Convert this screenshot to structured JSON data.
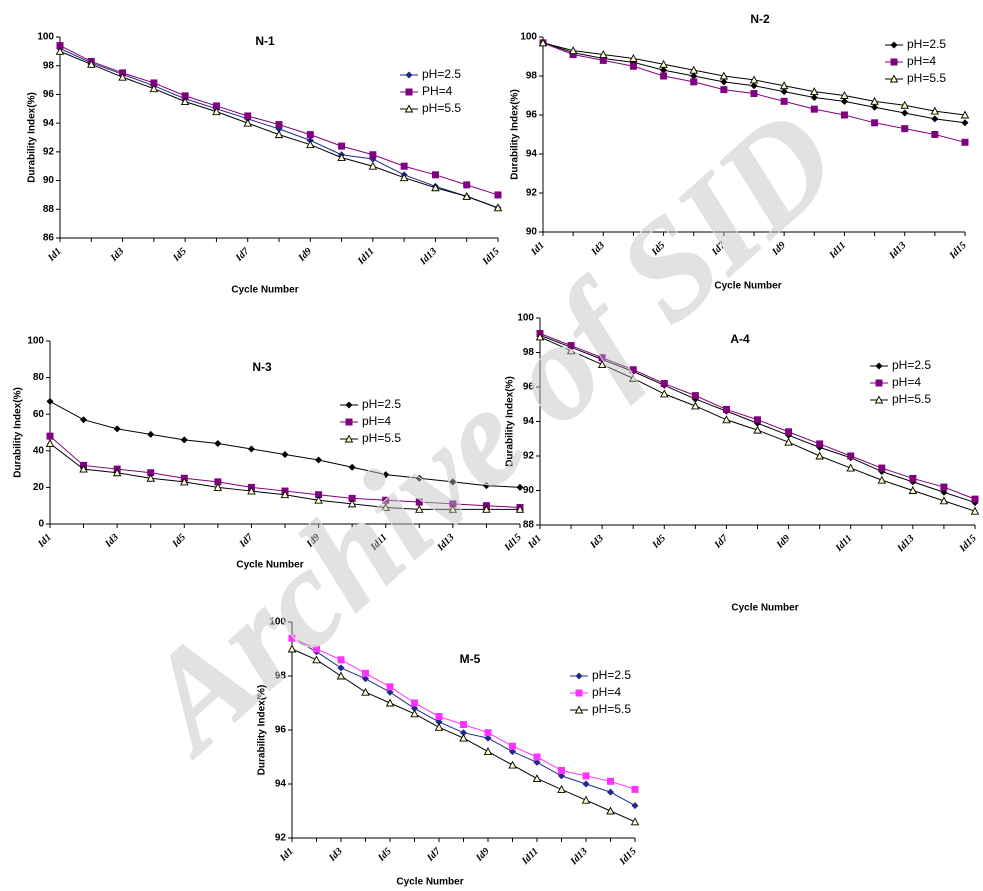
{
  "watermark": "Archive of SID",
  "chart_data": [
    {
      "type": "line",
      "title": "N-1",
      "x_label": "Cycle Number",
      "y_label": "Durability Index(%)",
      "categories": [
        "Id1",
        null,
        "Id3",
        null,
        "Id5",
        null,
        "Id7",
        null,
        "Id9",
        null,
        "Id11",
        null,
        "Id13",
        null,
        "Id15"
      ],
      "ylim": [
        86,
        100
      ],
      "yticks": [
        86,
        88,
        90,
        92,
        94,
        96,
        98,
        100
      ],
      "series": [
        {
          "name": "pH=2.5",
          "color": "#1f2a8a",
          "marker": "diamond",
          "values": [
            99.2,
            98.2,
            97.4,
            96.6,
            95.7,
            95.0,
            94.3,
            93.6,
            92.8,
            91.8,
            91.5,
            90.4,
            89.6,
            88.9,
            88.1
          ]
        },
        {
          "name": "PH=4",
          "color": "#800080",
          "marker": "square",
          "values": [
            99.4,
            98.3,
            97.5,
            96.8,
            95.9,
            95.2,
            94.5,
            93.9,
            93.2,
            92.4,
            91.8,
            91.0,
            90.4,
            89.7,
            89.0
          ]
        },
        {
          "name": "pH=5.5",
          "color": "#000000",
          "marker": "triangle",
          "values": [
            99.0,
            98.1,
            97.2,
            96.4,
            95.5,
            94.8,
            94.0,
            93.2,
            92.5,
            91.6,
            91.0,
            90.2,
            89.5,
            88.9,
            88.1
          ]
        }
      ]
    },
    {
      "type": "line",
      "title": "N-2",
      "x_label": "Cycle Number",
      "y_label": "Durability Index(%)",
      "categories": [
        "Id1",
        null,
        "Id3",
        null,
        "Id5",
        null,
        "Id7",
        null,
        "Id9",
        null,
        "Id11",
        null,
        "Id13",
        null,
        "Id15"
      ],
      "ylim": [
        90,
        100
      ],
      "yticks": [
        90,
        92,
        94,
        96,
        98,
        100
      ],
      "series": [
        {
          "name": "pH=2.5",
          "color": "#000000",
          "marker": "diamond",
          "values": [
            99.7,
            99.2,
            98.9,
            98.7,
            98.3,
            98.0,
            97.7,
            97.5,
            97.2,
            96.9,
            96.7,
            96.4,
            96.1,
            95.8,
            95.6
          ]
        },
        {
          "name": "pH=4",
          "color": "#800080",
          "marker": "square",
          "values": [
            99.7,
            99.1,
            98.8,
            98.5,
            98.0,
            97.7,
            97.3,
            97.1,
            96.7,
            96.3,
            96.0,
            95.6,
            95.3,
            95.0,
            94.6
          ]
        },
        {
          "name": "pH=5.5",
          "color": "#000000",
          "marker": "triangle",
          "values": [
            99.7,
            99.3,
            99.1,
            98.9,
            98.6,
            98.3,
            98.0,
            97.8,
            97.5,
            97.2,
            97.0,
            96.7,
            96.5,
            96.2,
            96.0
          ]
        }
      ]
    },
    {
      "type": "line",
      "title": "N-3",
      "x_label": "Cycle Number",
      "y_label": "Durability Index(%)",
      "categories": [
        "Id1",
        null,
        "Id3",
        null,
        "Id5",
        null,
        "Id7",
        null,
        "Id9",
        null,
        "Id11",
        null,
        "Id13",
        null,
        "Id15"
      ],
      "ylim": [
        0,
        100
      ],
      "yticks": [
        0,
        20,
        40,
        60,
        80,
        100
      ],
      "series": [
        {
          "name": "pH=2.5",
          "color": "#000000",
          "marker": "diamond",
          "values": [
            67,
            57,
            52,
            49,
            46,
            44,
            41,
            38,
            35,
            31,
            27,
            25,
            23,
            21,
            20
          ]
        },
        {
          "name": "pH=4",
          "color": "#800080",
          "marker": "square",
          "values": [
            48,
            32,
            30,
            28,
            25,
            23,
            20,
            18,
            16,
            14,
            13,
            12,
            11,
            10,
            9
          ]
        },
        {
          "name": "pH=5.5",
          "color": "#000000",
          "marker": "triangle",
          "values": [
            44,
            30,
            28,
            25,
            23,
            20,
            18,
            16,
            13,
            11,
            9,
            8,
            8,
            8,
            8
          ]
        }
      ]
    },
    {
      "type": "line",
      "title": "A-4",
      "x_label": "Cycle Number",
      "y_label": "Durability Index(%)",
      "categories": [
        "Id1",
        null,
        "Id3",
        null,
        "Id5",
        null,
        "Id7",
        null,
        "Id9",
        null,
        "Id11",
        null,
        "Id13",
        null,
        "Id15"
      ],
      "ylim": [
        88,
        100
      ],
      "yticks": [
        88,
        90,
        92,
        94,
        96,
        98,
        100
      ],
      "series": [
        {
          "name": "pH=2.5",
          "color": "#000000",
          "marker": "diamond",
          "values": [
            99.0,
            98.3,
            97.6,
            96.9,
            96.1,
            95.3,
            94.6,
            93.9,
            93.2,
            92.5,
            91.9,
            91.1,
            90.5,
            89.9,
            89.3
          ]
        },
        {
          "name": "pH=4",
          "color": "#800080",
          "marker": "square",
          "values": [
            99.1,
            98.4,
            97.7,
            97.0,
            96.2,
            95.5,
            94.7,
            94.1,
            93.4,
            92.7,
            92.0,
            91.3,
            90.7,
            90.2,
            89.5
          ]
        },
        {
          "name": "pH=5.5",
          "color": "#000000",
          "marker": "triangle",
          "values": [
            98.9,
            98.1,
            97.3,
            96.5,
            95.6,
            94.9,
            94.1,
            93.5,
            92.8,
            92.0,
            91.3,
            90.6,
            90.0,
            89.4,
            88.8
          ]
        }
      ]
    },
    {
      "type": "line",
      "title": "M-5",
      "x_label": "Cycle Number",
      "y_label": "Durability Index(%)",
      "categories": [
        "Id1",
        null,
        "Id3",
        null,
        "Id5",
        null,
        "Id7",
        null,
        "Id9",
        null,
        "Id11",
        null,
        "Id13",
        null,
        "Id15"
      ],
      "ylim": [
        92,
        100
      ],
      "yticks": [
        92,
        94,
        96,
        98,
        100
      ],
      "series": [
        {
          "name": "pH=2.5",
          "color": "#1f2a8a",
          "marker": "diamond",
          "values": [
            99.4,
            98.9,
            98.3,
            97.9,
            97.4,
            96.8,
            96.3,
            95.9,
            95.7,
            95.2,
            94.8,
            94.3,
            94.0,
            93.7,
            93.2
          ]
        },
        {
          "name": "pH=4",
          "color": "#ff33ff",
          "marker": "square",
          "values": [
            99.4,
            99.0,
            98.6,
            98.1,
            97.6,
            97.0,
            96.5,
            96.2,
            95.9,
            95.4,
            95.0,
            94.5,
            94.3,
            94.1,
            93.8
          ]
        },
        {
          "name": "pH=5.5",
          "color": "#000000",
          "marker": "triangle",
          "values": [
            99.0,
            98.6,
            98.0,
            97.4,
            97.0,
            96.6,
            96.1,
            95.7,
            95.2,
            94.7,
            94.2,
            93.8,
            93.4,
            93.0,
            92.6
          ]
        }
      ]
    }
  ]
}
